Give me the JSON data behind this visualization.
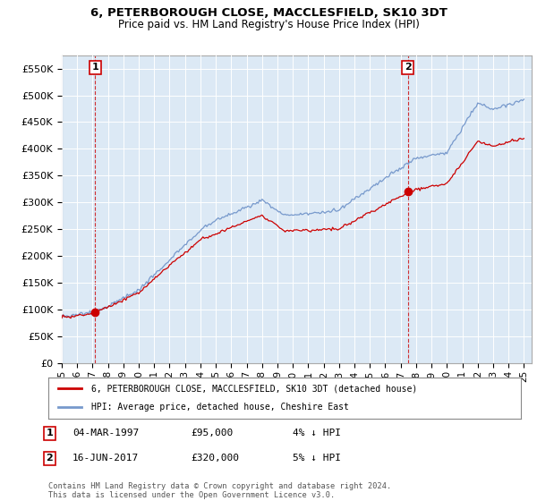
{
  "title": "6, PETERBOROUGH CLOSE, MACCLESFIELD, SK10 3DT",
  "subtitle": "Price paid vs. HM Land Registry's House Price Index (HPI)",
  "legend_line1": "6, PETERBOROUGH CLOSE, MACCLESFIELD, SK10 3DT (detached house)",
  "legend_line2": "HPI: Average price, detached house, Cheshire East",
  "annotation1_date": "04-MAR-1997",
  "annotation1_price": "£95,000",
  "annotation1_hpi": "4% ↓ HPI",
  "annotation2_date": "16-JUN-2017",
  "annotation2_price": "£320,000",
  "annotation2_hpi": "5% ↓ HPI",
  "footer": "Contains HM Land Registry data © Crown copyright and database right 2024.\nThis data is licensed under the Open Government Licence v3.0.",
  "sale1_year": 1997.17,
  "sale1_value": 95000,
  "sale2_year": 2017.46,
  "sale2_value": 320000,
  "hpi_color": "#7799cc",
  "price_color": "#cc0000",
  "plot_bg": "#dce9f5",
  "ylim_min": 0,
  "ylim_max": 575000,
  "xlim_min": 1995.0,
  "xlim_max": 2025.5,
  "yticks": [
    0,
    50000,
    100000,
    150000,
    200000,
    250000,
    300000,
    350000,
    400000,
    450000,
    500000,
    550000
  ],
  "ytick_labels": [
    "£0",
    "£50K",
    "£100K",
    "£150K",
    "£200K",
    "£250K",
    "£300K",
    "£350K",
    "£400K",
    "£450K",
    "£500K",
    "£550K"
  ],
  "xticks": [
    1995,
    1996,
    1997,
    1998,
    1999,
    2000,
    2001,
    2002,
    2003,
    2004,
    2005,
    2006,
    2007,
    2008,
    2009,
    2010,
    2011,
    2012,
    2013,
    2014,
    2015,
    2016,
    2017,
    2018,
    2019,
    2020,
    2021,
    2022,
    2023,
    2024,
    2025
  ],
  "xtick_labels": [
    "95",
    "96",
    "97",
    "98",
    "99",
    "00",
    "01",
    "02",
    "03",
    "04",
    "05",
    "06",
    "07",
    "08",
    "09",
    "10",
    "11",
    "12",
    "13",
    "14",
    "15",
    "16",
    "17",
    "18",
    "19",
    "20",
    "21",
    "22",
    "23",
    "24",
    "25"
  ]
}
